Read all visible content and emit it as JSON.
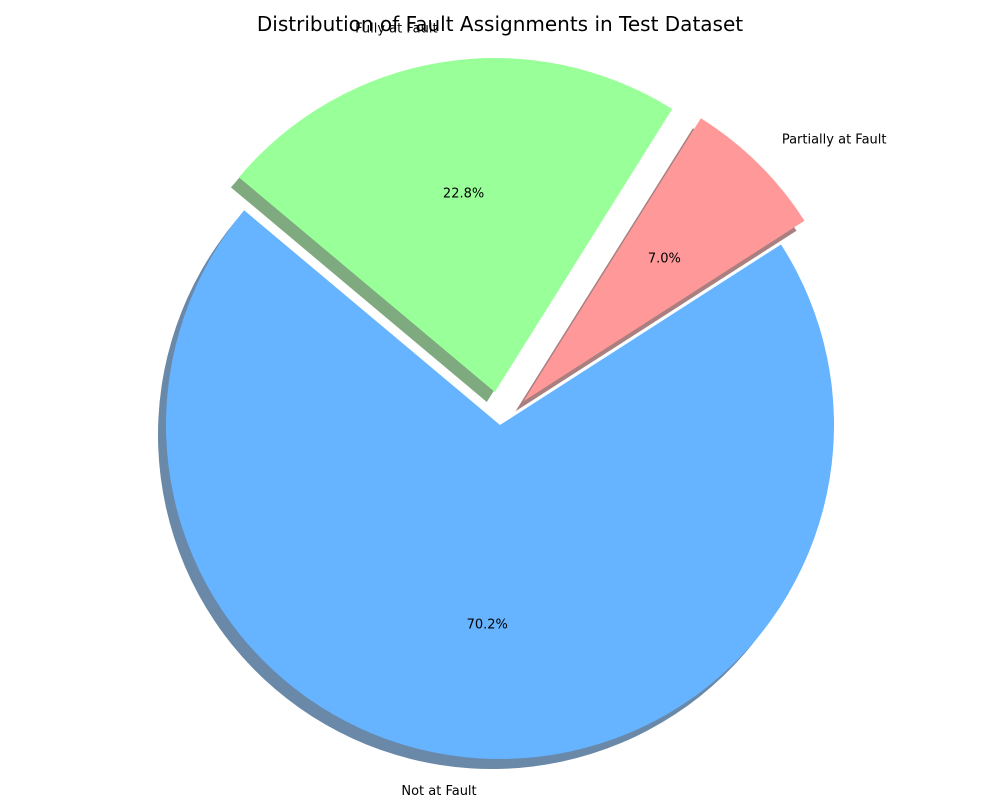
{
  "chart_data": {
    "type": "pie",
    "title": "Distribution of Fault Assignments in Test Dataset",
    "slices": [
      {
        "label": "Not at Fault",
        "value": 70.2,
        "pct_label": "70.2%",
        "color": "#66b3ff",
        "exploded": false
      },
      {
        "label": "Partially at Fault",
        "value": 7.0,
        "pct_label": "7.0%",
        "color": "#ff9999",
        "exploded": true
      },
      {
        "label": "Fully at Fault",
        "value": 22.8,
        "pct_label": "22.8%",
        "color": "#99ff99",
        "exploded": true
      }
    ],
    "shadow": true
  }
}
